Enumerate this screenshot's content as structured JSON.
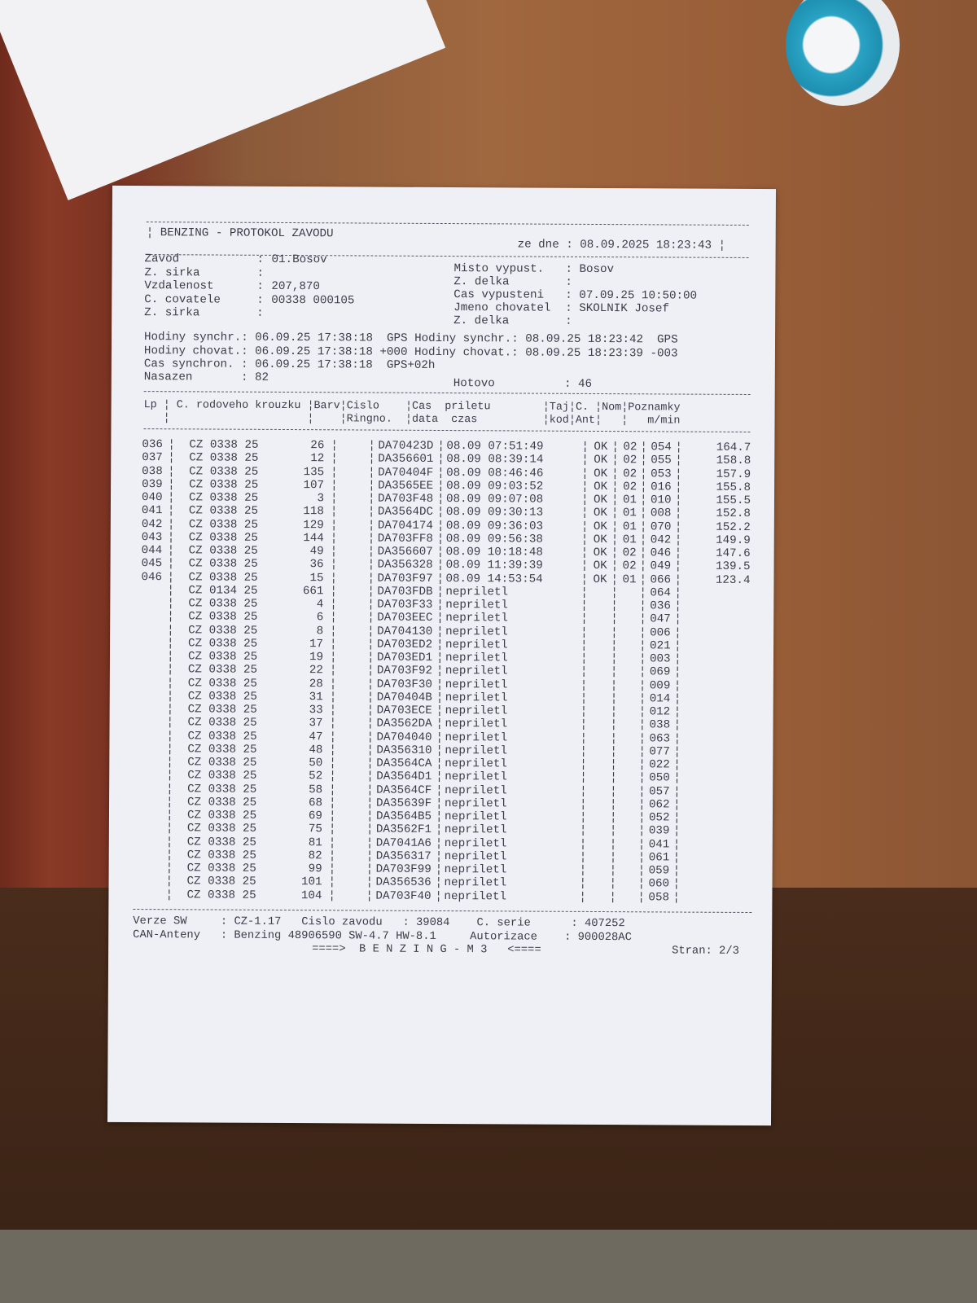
{
  "header": {
    "title": "BENZING - PROTOKOL ZAVODU",
    "date_label": "ze dne",
    "date": "08.09.2025 18:23:43"
  },
  "info_left": [
    {
      "label": "Zavod",
      "value": "01.Bosov"
    },
    {
      "label": "Z. sirka",
      "value": ""
    },
    {
      "label": "Vzdalenost",
      "value": "207,870"
    },
    {
      "label": "C. covatele",
      "value": "00338 000105"
    },
    {
      "label": "Z. sirka",
      "value": ""
    }
  ],
  "info_right": [
    {
      "label": "Misto vypust.",
      "value": "Bosov"
    },
    {
      "label": "Z. delka",
      "value": ""
    },
    {
      "label": "Cas vypusteni",
      "value": "07.09.25 10:50:00"
    },
    {
      "label": "Jmeno chovatel",
      "value": "SKOLNIK Josef"
    },
    {
      "label": "Z. delka",
      "value": ""
    }
  ],
  "sync": [
    "Hodiny synchr.: 06.09.25 17:38:18  GPS Hodiny synchr.: 08.09.25 18:23:42  GPS",
    "Hodiny chovat.: 06.09.25 17:38:18 +000 Hodiny chovat.: 08.09.25 18:23:39 -003",
    "Cas synchron. : 06.09.25 17:38:18  GPS+02h",
    "Nasazen       : 82"
  ],
  "hotovo": {
    "label": "Hotovo",
    "value": "46"
  },
  "columns": {
    "line1": "Lp ¦ C. rodoveho krouzku ¦Barv¦Cislo    ¦Cas  priletu        ¦Taj¦C. ¦Nom¦Poznamky",
    "line2": "   ¦                     ¦    ¦Ringno.  ¦data  czas          ¦kod¦Ant¦   ¦   m/min"
  },
  "rows": [
    [
      "036",
      "CZ 0338 25",
      "26",
      "DA70423D",
      "08.09 07:51:49",
      "OK",
      "02",
      "054",
      "164.7"
    ],
    [
      "037",
      "CZ 0338 25",
      "12",
      "DA356601",
      "08.09 08:39:14",
      "OK",
      "02",
      "055",
      "158.8"
    ],
    [
      "038",
      "CZ 0338 25",
      "135",
      "DA70404F",
      "08.09 08:46:46",
      "OK",
      "02",
      "053",
      "157.9"
    ],
    [
      "039",
      "CZ 0338 25",
      "107",
      "DA3565EE",
      "08.09 09:03:52",
      "OK",
      "02",
      "016",
      "155.8"
    ],
    [
      "040",
      "CZ 0338 25",
      "3",
      "DA703F48",
      "08.09 09:07:08",
      "OK",
      "01",
      "010",
      "155.5"
    ],
    [
      "041",
      "CZ 0338 25",
      "118",
      "DA3564DC",
      "08.09 09:30:13",
      "OK",
      "01",
      "008",
      "152.8"
    ],
    [
      "042",
      "CZ 0338 25",
      "129",
      "DA704174",
      "08.09 09:36:03",
      "OK",
      "01",
      "070",
      "152.2"
    ],
    [
      "043",
      "CZ 0338 25",
      "144",
      "DA703FF8",
      "08.09 09:56:38",
      "OK",
      "01",
      "042",
      "149.9"
    ],
    [
      "044",
      "CZ 0338 25",
      "49",
      "DA356607",
      "08.09 10:18:48",
      "OK",
      "02",
      "046",
      "147.6"
    ],
    [
      "045",
      "CZ 0338 25",
      "36",
      "DA356328",
      "08.09 11:39:39",
      "OK",
      "02",
      "049",
      "139.5"
    ],
    [
      "046",
      "CZ 0338 25",
      "15",
      "DA703F97",
      "08.09 14:53:54",
      "OK",
      "01",
      "066",
      "123.4"
    ],
    [
      "",
      "CZ 0134 25",
      "661",
      "DA703FDB",
      "nepriletl",
      "",
      "",
      "064",
      ""
    ],
    [
      "",
      "CZ 0338 25",
      "4",
      "DA703F33",
      "nepriletl",
      "",
      "",
      "036",
      ""
    ],
    [
      "",
      "CZ 0338 25",
      "6",
      "DA703EEC",
      "nepriletl",
      "",
      "",
      "047",
      ""
    ],
    [
      "",
      "CZ 0338 25",
      "8",
      "DA704130",
      "nepriletl",
      "",
      "",
      "006",
      ""
    ],
    [
      "",
      "CZ 0338 25",
      "17",
      "DA703ED2",
      "nepriletl",
      "",
      "",
      "021",
      ""
    ],
    [
      "",
      "CZ 0338 25",
      "19",
      "DA703ED1",
      "nepriletl",
      "",
      "",
      "003",
      ""
    ],
    [
      "",
      "CZ 0338 25",
      "22",
      "DA703F92",
      "nepriletl",
      "",
      "",
      "069",
      ""
    ],
    [
      "",
      "CZ 0338 25",
      "28",
      "DA703F30",
      "nepriletl",
      "",
      "",
      "009",
      ""
    ],
    [
      "",
      "CZ 0338 25",
      "31",
      "DA70404B",
      "nepriletl",
      "",
      "",
      "014",
      ""
    ],
    [
      "",
      "CZ 0338 25",
      "33",
      "DA703ECE",
      "nepriletl",
      "",
      "",
      "012",
      ""
    ],
    [
      "",
      "CZ 0338 25",
      "37",
      "DA3562DA",
      "nepriletl",
      "",
      "",
      "038",
      ""
    ],
    [
      "",
      "CZ 0338 25",
      "47",
      "DA704040",
      "nepriletl",
      "",
      "",
      "063",
      ""
    ],
    [
      "",
      "CZ 0338 25",
      "48",
      "DA356310",
      "nepriletl",
      "",
      "",
      "077",
      ""
    ],
    [
      "",
      "CZ 0338 25",
      "50",
      "DA3564CA",
      "nepriletl",
      "",
      "",
      "022",
      ""
    ],
    [
      "",
      "CZ 0338 25",
      "52",
      "DA3564D1",
      "nepriletl",
      "",
      "",
      "050",
      ""
    ],
    [
      "",
      "CZ 0338 25",
      "58",
      "DA3564CF",
      "nepriletl",
      "",
      "",
      "057",
      ""
    ],
    [
      "",
      "CZ 0338 25",
      "68",
      "DA35639F",
      "nepriletl",
      "",
      "",
      "062",
      ""
    ],
    [
      "",
      "CZ 0338 25",
      "69",
      "DA3564B5",
      "nepriletl",
      "",
      "",
      "052",
      ""
    ],
    [
      "",
      "CZ 0338 25",
      "75",
      "DA3562F1",
      "nepriletl",
      "",
      "",
      "039",
      ""
    ],
    [
      "",
      "CZ 0338 25",
      "81",
      "DA7041A6",
      "nepriletl",
      "",
      "",
      "041",
      ""
    ],
    [
      "",
      "CZ 0338 25",
      "82",
      "DA356317",
      "nepriletl",
      "",
      "",
      "061",
      ""
    ],
    [
      "",
      "CZ 0338 25",
      "99",
      "DA703F99",
      "nepriletl",
      "",
      "",
      "059",
      ""
    ],
    [
      "",
      "CZ 0338 25",
      "101",
      "DA356536",
      "nepriletl",
      "",
      "",
      "060",
      ""
    ],
    [
      "",
      "CZ 0338 25",
      "104",
      "DA703F40",
      "nepriletl",
      "",
      "",
      "058",
      ""
    ]
  ],
  "footer": {
    "line1": "Verze SW     : CZ-1.17   Cislo zavodu   : 39084    C. serie      : 407252",
    "line2": "CAN-Anteny   : Benzing 48906590 SW-4.7 HW-8.1     Autorizace    : 900028AC",
    "brand": "====>  B E N Z I N G - M 3   <====",
    "page": "Stran: 2/3"
  }
}
